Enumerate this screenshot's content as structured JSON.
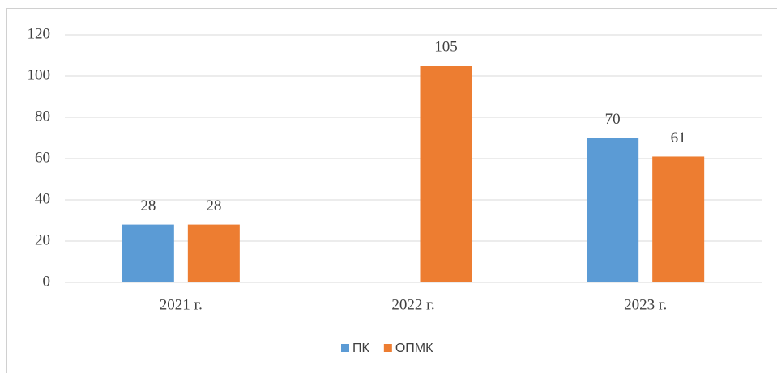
{
  "chart_data": {
    "type": "bar",
    "categories": [
      "2021 г.",
      "2022 г.",
      "2023 г."
    ],
    "series": [
      {
        "name": "ПК",
        "color": "#5b9bd5",
        "values": [
          28,
          null,
          70
        ]
      },
      {
        "name": "ОПМК",
        "color": "#ed7d31",
        "values": [
          28,
          105,
          61
        ]
      }
    ],
    "ylim": [
      0,
      120
    ],
    "yticks": [
      0,
      20,
      40,
      60,
      80,
      100,
      120
    ],
    "grid": true,
    "legend": "bottom"
  }
}
